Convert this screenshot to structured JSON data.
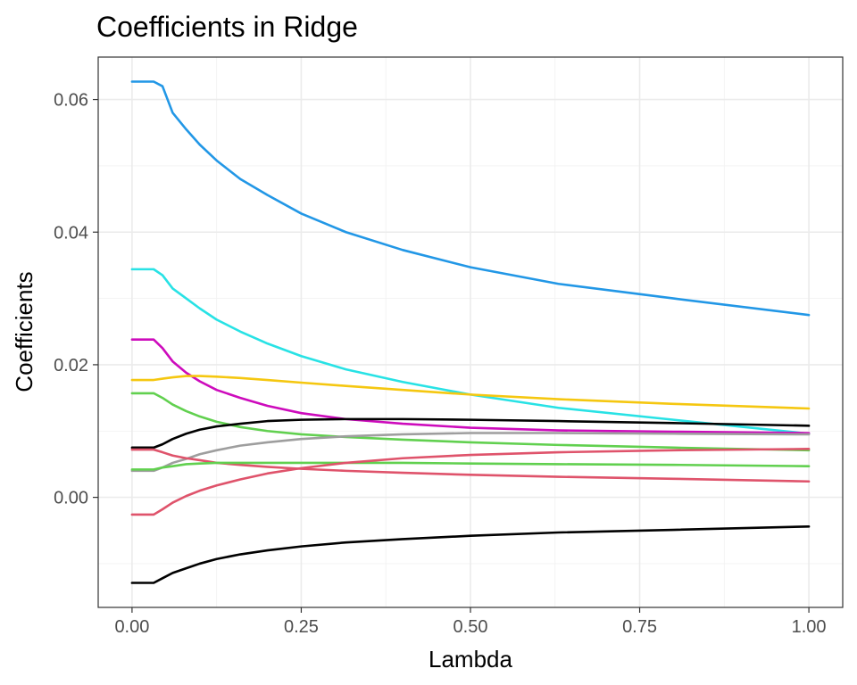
{
  "chart_data": {
    "type": "line",
    "title": "Coefficients in Ridge",
    "xlabel": "Lambda",
    "ylabel": "Coefficients",
    "xlim": [
      -0.05,
      1.05
    ],
    "ylim": [
      -0.0166,
      0.0664
    ],
    "x_ticks": [
      0.0,
      0.25,
      0.5,
      0.75,
      1.0
    ],
    "x_tick_labels": [
      "0.00",
      "0.25",
      "0.50",
      "0.75",
      "1.00"
    ],
    "x_minor_ticks": [
      0.125,
      0.375,
      0.625,
      0.875
    ],
    "y_ticks": [
      0.0,
      0.02,
      0.04,
      0.06
    ],
    "y_tick_labels": [
      "0.00",
      "0.02",
      "0.04",
      "0.06"
    ],
    "y_minor_ticks": [
      -0.01,
      0.01,
      0.03,
      0.05
    ],
    "grid": true,
    "legend": "none",
    "x": [
      0.0,
      0.01,
      0.02,
      0.032,
      0.045,
      0.06,
      0.08,
      0.1,
      0.125,
      0.16,
      0.2,
      0.25,
      0.316,
      0.4,
      0.5,
      0.63,
      0.8,
      1.0
    ],
    "series": [
      {
        "color": "#2297E6",
        "values": [
          0.0627,
          0.0627,
          0.0627,
          0.0627,
          0.062,
          0.058,
          0.0555,
          0.0532,
          0.0508,
          0.048,
          0.0456,
          0.0428,
          0.04,
          0.0373,
          0.0347,
          0.0322,
          0.03,
          0.0275
        ]
      },
      {
        "color": "#28E2E5",
        "values": [
          0.0344,
          0.0344,
          0.0344,
          0.0344,
          0.0335,
          0.0315,
          0.03,
          0.0285,
          0.0268,
          0.025,
          0.0232,
          0.0213,
          0.0193,
          0.0174,
          0.0155,
          0.0135,
          0.0117,
          0.0096
        ]
      },
      {
        "color": "#CD0BBC",
        "values": [
          0.0238,
          0.0238,
          0.0238,
          0.0238,
          0.0225,
          0.0205,
          0.0188,
          0.0175,
          0.0162,
          0.015,
          0.0138,
          0.0127,
          0.0118,
          0.0111,
          0.0105,
          0.0101,
          0.0099,
          0.0097
        ]
      },
      {
        "color": "#F5C710",
        "values": [
          0.0177,
          0.0177,
          0.0177,
          0.0177,
          0.0179,
          0.0181,
          0.0183,
          0.0183,
          0.0182,
          0.018,
          0.0177,
          0.0173,
          0.0168,
          0.0162,
          0.0155,
          0.0148,
          0.0141,
          0.0134
        ]
      },
      {
        "color": "#61D04F",
        "values": [
          0.0157,
          0.0157,
          0.0157,
          0.0157,
          0.015,
          0.014,
          0.013,
          0.0122,
          0.0114,
          0.0106,
          0.01,
          0.0095,
          0.0091,
          0.0087,
          0.0083,
          0.0079,
          0.0075,
          0.0071
        ]
      },
      {
        "color": "#000000",
        "values": [
          0.0075,
          0.0075,
          0.0075,
          0.0075,
          0.008,
          0.0088,
          0.0096,
          0.0102,
          0.0107,
          0.0111,
          0.0115,
          0.0117,
          0.0118,
          0.0118,
          0.0117,
          0.0115,
          0.0112,
          0.0108
        ]
      },
      {
        "color": "#9E9E9E",
        "values": [
          0.004,
          0.004,
          0.004,
          0.004,
          0.0045,
          0.0052,
          0.0058,
          0.0065,
          0.0071,
          0.0078,
          0.0083,
          0.0088,
          0.0092,
          0.0095,
          0.0097,
          0.0097,
          0.0096,
          0.0095
        ]
      },
      {
        "color": "#DF536B",
        "values": [
          0.0072,
          0.0072,
          0.0072,
          0.0072,
          0.0068,
          0.0063,
          0.0059,
          0.0056,
          0.0052,
          0.0049,
          0.0046,
          0.0043,
          0.004,
          0.0037,
          0.0034,
          0.0031,
          0.0028,
          0.0024
        ]
      },
      {
        "color": "#61D04F",
        "values": [
          0.0042,
          0.0042,
          0.0042,
          0.0042,
          0.0045,
          0.0047,
          0.005,
          0.0051,
          0.0052,
          0.0052,
          0.0052,
          0.0052,
          0.0052,
          0.0052,
          0.0051,
          0.005,
          0.0049,
          0.0047
        ]
      },
      {
        "color": "#DF536B",
        "values": [
          -0.0026,
          -0.0026,
          -0.0026,
          -0.0026,
          -0.0018,
          -0.0008,
          0.0002,
          0.001,
          0.0018,
          0.0027,
          0.0036,
          0.0044,
          0.0052,
          0.0059,
          0.0064,
          0.0068,
          0.0071,
          0.0073
        ]
      },
      {
        "color": "#000000",
        "values": [
          -0.0129,
          -0.0129,
          -0.0129,
          -0.0129,
          -0.0122,
          -0.0114,
          -0.0107,
          -0.01,
          -0.0093,
          -0.0086,
          -0.008,
          -0.0074,
          -0.0068,
          -0.0063,
          -0.0058,
          -0.0053,
          -0.0049,
          -0.0044
        ]
      }
    ]
  }
}
